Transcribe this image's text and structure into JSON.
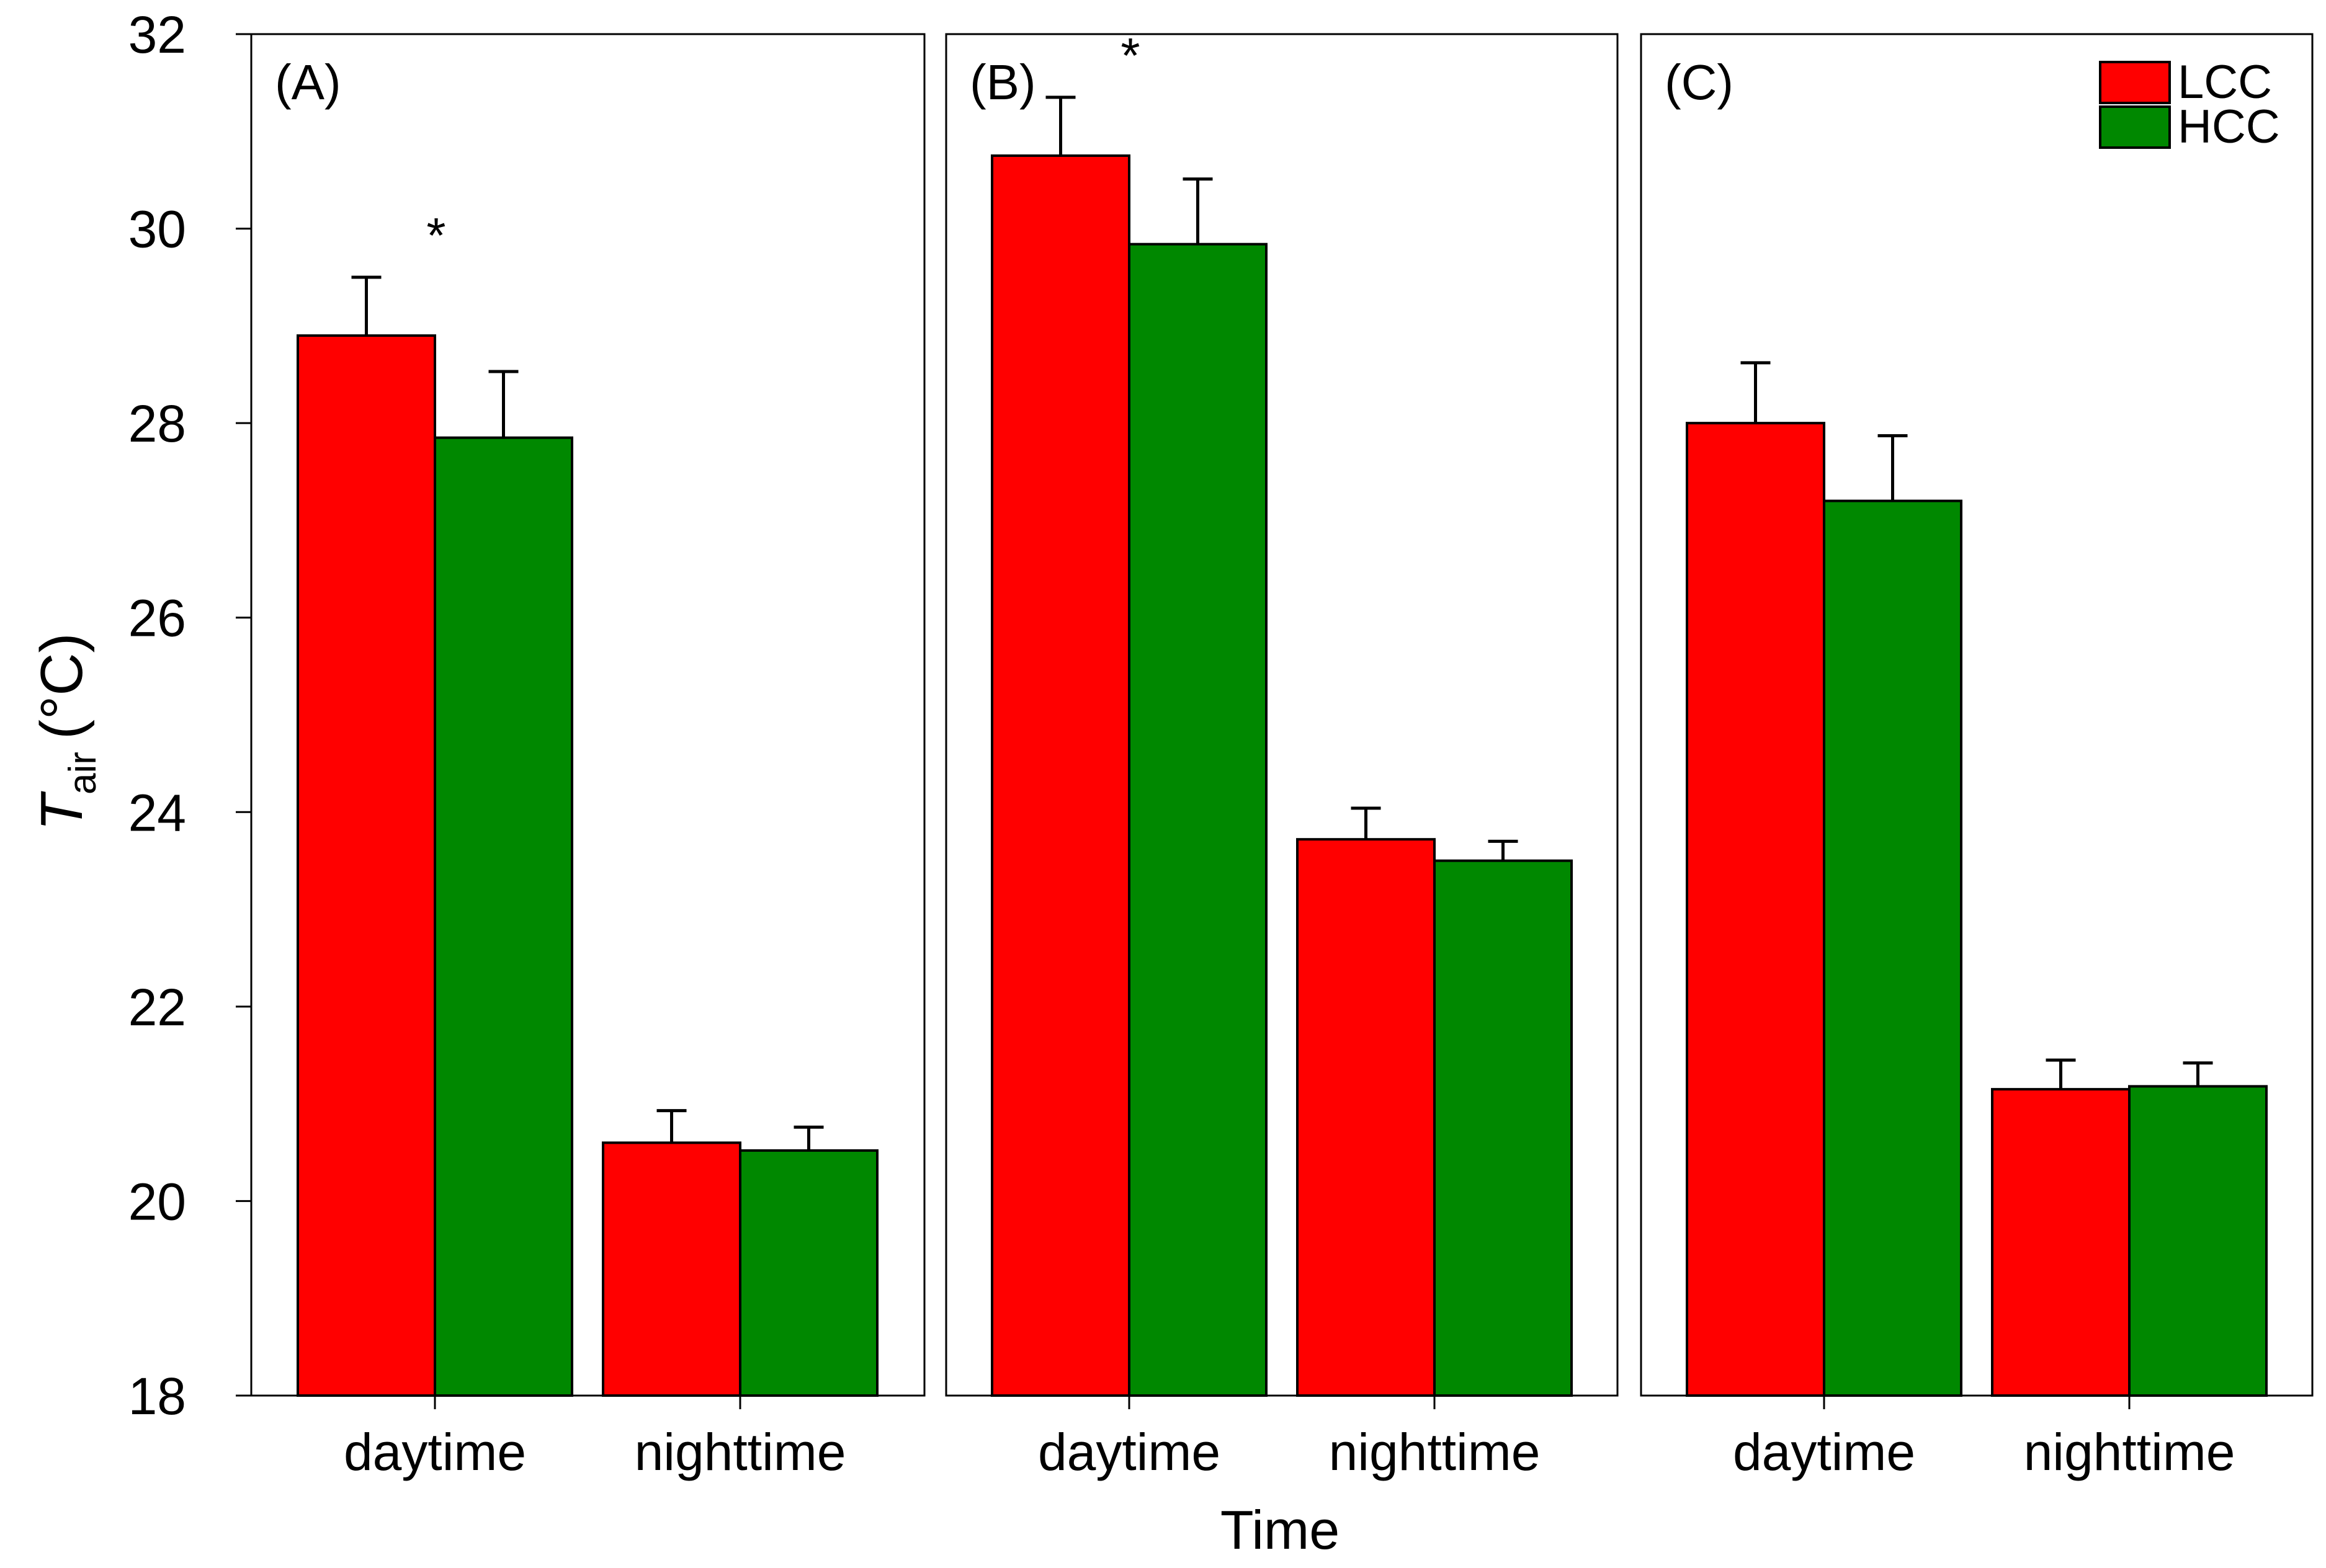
{
  "chart_data": {
    "type": "bar",
    "y_axis_label": {
      "main": "T",
      "subscript": "air",
      "unit": "(°C)"
    },
    "xlabel": "Time",
    "ylim": [
      18,
      32
    ],
    "yticks": [
      "18",
      "20",
      "22",
      "24",
      "26",
      "28",
      "30",
      "32"
    ],
    "categories": [
      "daytime",
      "nighttime"
    ],
    "legend": {
      "placement": "top-right",
      "entries": [
        {
          "name": "LCC",
          "color": "#ff0000"
        },
        {
          "name": "HCC",
          "color": "#008800"
        }
      ]
    },
    "significance_marker": "*",
    "panels": [
      {
        "label": "(A)",
        "series": [
          {
            "name": "LCC",
            "values": [
              28.9,
              20.6
            ],
            "errors": [
              0.6,
              0.33
            ]
          },
          {
            "name": "HCC",
            "values": [
              27.85,
              20.52
            ],
            "errors": [
              0.68,
              0.24
            ]
          }
        ],
        "significant": [
          true,
          false
        ]
      },
      {
        "label": "(B)",
        "series": [
          {
            "name": "LCC",
            "values": [
              30.75,
              23.72
            ],
            "errors": [
              0.6,
              0.32
            ]
          },
          {
            "name": "HCC",
            "values": [
              29.84,
              23.5
            ],
            "errors": [
              0.67,
              0.2
            ]
          }
        ],
        "significant": [
          true,
          false
        ]
      },
      {
        "label": "(C)",
        "series": [
          {
            "name": "LCC",
            "values": [
              28.0,
              21.15
            ],
            "errors": [
              0.62,
              0.3
            ]
          },
          {
            "name": "HCC",
            "values": [
              27.2,
              21.18
            ],
            "errors": [
              0.67,
              0.24
            ]
          }
        ],
        "significant": [
          false,
          false
        ]
      }
    ]
  }
}
